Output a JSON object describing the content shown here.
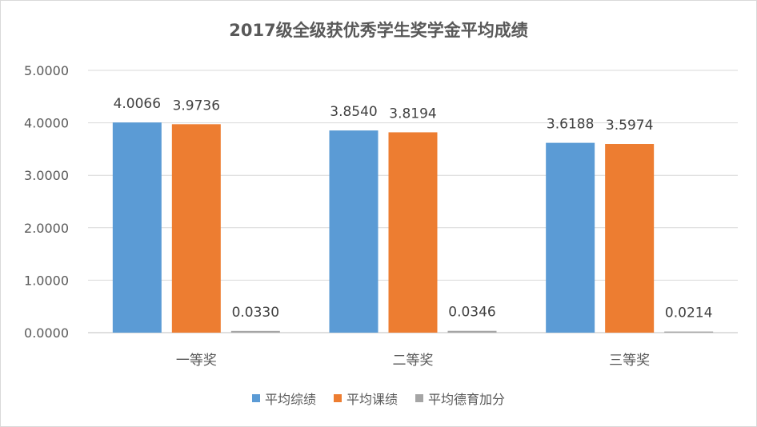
{
  "chart_data": {
    "type": "bar",
    "title": "2017级全级获优秀学生奖学金平均成绩",
    "categories": [
      "一等奖",
      "二等奖",
      "三等奖"
    ],
    "series": [
      {
        "name": "平均综绩",
        "values": [
          4.0066,
          3.854,
          3.6188
        ],
        "labels": [
          "4.0066",
          "3.8540",
          "3.6188"
        ],
        "color": "#5b9bd5"
      },
      {
        "name": "平均课绩",
        "values": [
          3.9736,
          3.8194,
          3.5974
        ],
        "labels": [
          "3.9736",
          "3.8194",
          "3.5974"
        ],
        "color": "#ed7d31"
      },
      {
        "name": "平均德育加分",
        "values": [
          0.033,
          0.0346,
          0.0214
        ],
        "labels": [
          "0.0330",
          "0.0346",
          "0.0214"
        ],
        "color": "#a5a5a5"
      }
    ],
    "ylim": [
      0,
      5
    ],
    "yticks": [
      {
        "value": 0,
        "label": "0.0000"
      },
      {
        "value": 1,
        "label": "1.0000"
      },
      {
        "value": 2,
        "label": "2.0000"
      },
      {
        "value": 3,
        "label": "3.0000"
      },
      {
        "value": 4,
        "label": "4.0000"
      },
      {
        "value": 5,
        "label": "5.0000"
      }
    ],
    "grid": true,
    "legend_position": "bottom"
  }
}
